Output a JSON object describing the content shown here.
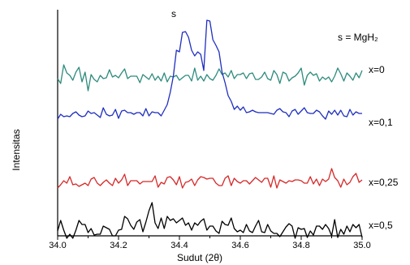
{
  "chart_data": {
    "type": "line",
    "xlabel": "Sudut (2θ)",
    "ylabel": "Intensitas",
    "xlim": [
      34.0,
      35.0
    ],
    "xticks": [
      "34.0",
      "34.2",
      "34.4",
      "34.6",
      "34.8",
      "35.0"
    ],
    "y_ticks_shown": false,
    "peak_label": "s",
    "legend_note": "s = MgH₂",
    "series": [
      {
        "name": "x=0",
        "color": "#2e8b7e",
        "values": [
          100,
          94,
          117,
          107,
          104,
          98,
          108,
          114,
          96,
          108,
          85,
          105,
          99,
          96,
          104,
          100,
          101,
          111,
          102,
          104,
          101,
          107,
          112,
          100,
          103,
          103,
          103,
          95,
          105,
          102,
          99,
          106,
          98,
          103,
          97,
          107,
          96,
          103,
          102,
          104,
          98,
          101,
          104,
          104,
          97,
          113,
          98,
          103,
          97,
          105,
          100,
          98,
          104,
          112,
          105,
          107,
          102,
          110,
          100,
          105,
          105,
          107,
          100,
          106,
          107,
          99,
          99,
          102,
          108,
          100,
          98,
          110,
          105,
          94,
          108,
          106,
          97,
          101,
          103,
          107,
          113,
          92,
          104,
          108,
          104,
          106,
          97,
          102,
          99,
          102,
          96,
          103,
          113,
          106,
          97,
          107,
          103,
          98,
          107,
          101,
          110
        ]
      },
      {
        "name": "x=0,1",
        "color": "#1f2fbf",
        "values": [
          50,
          56,
          53,
          54,
          53,
          57,
          59,
          55,
          53,
          54,
          60,
          57,
          58,
          55,
          52,
          64,
          56,
          54,
          55,
          62,
          51,
          60,
          61,
          58,
          58,
          56,
          58,
          58,
          54,
          63,
          54,
          59,
          58,
          58,
          54,
          61,
          68,
          83,
          103,
          135,
          133,
          157,
          158,
          151,
          135,
          128,
          133,
          130,
          110,
          172,
          171,
          148,
          141,
          133,
          108,
          95,
          79,
          72,
          62,
          66,
          61,
          65,
          58,
          59,
          61,
          59,
          58,
          58,
          58,
          58,
          57,
          56,
          61,
          63,
          59,
          58,
          53,
          60,
          62,
          56,
          60,
          64,
          58,
          57,
          57,
          61,
          59,
          54,
          50,
          60,
          56,
          61,
          55,
          61,
          54,
          53,
          62,
          55,
          59,
          57,
          57
        ]
      },
      {
        "name": "x=0,25",
        "color": "#d62828",
        "values": [
          -35,
          -31,
          -26,
          -29,
          -21,
          -31,
          -30,
          -33,
          -31,
          -29,
          -32,
          -24,
          -22,
          -29,
          -32,
          -28,
          -25,
          -29,
          -32,
          -23,
          -29,
          -25,
          -18,
          -32,
          -26,
          -26,
          -26,
          -30,
          -27,
          -27,
          -27,
          -27,
          -20,
          -34,
          -28,
          -30,
          -22,
          -21,
          -25,
          -31,
          -21,
          -35,
          -28,
          -27,
          -24,
          -32,
          -25,
          -21,
          -22,
          -24,
          -23,
          -23,
          -29,
          -32,
          -32,
          -23,
          -20,
          -32,
          -23,
          -27,
          -29,
          -26,
          -26,
          -30,
          -26,
          -22,
          -25,
          -28,
          -23,
          -23,
          -34,
          -20,
          -35,
          -25,
          -27,
          -29,
          -26,
          -27,
          -25,
          -25,
          -26,
          -29,
          -29,
          -21,
          -30,
          -24,
          -32,
          -24,
          -27,
          -24,
          -11,
          -22,
          -26,
          -34,
          -24,
          -31,
          -28,
          -21,
          -17,
          -28,
          -25
        ]
      },
      {
        "name": "x=0,5",
        "color": "#000000",
        "values": [
          -88,
          -75,
          -87,
          -97,
          -92,
          -97,
          -87,
          -75,
          -80,
          -80,
          -90,
          -85,
          -93,
          -92,
          -92,
          -82,
          -84,
          -86,
          -94,
          -94,
          -87,
          -86,
          -70,
          -73,
          -81,
          -86,
          -77,
          -74,
          -89,
          -77,
          -63,
          -53,
          -78,
          -85,
          -72,
          -85,
          -70,
          -75,
          -73,
          -78,
          -75,
          -72,
          -81,
          -78,
          -87,
          -78,
          -81,
          -76,
          -73,
          -87,
          -82,
          -82,
          -88,
          -91,
          -76,
          -80,
          -81,
          -72,
          -85,
          -89,
          -87,
          -90,
          -80,
          -88,
          -90,
          -82,
          -75,
          -89,
          -90,
          -80,
          -88,
          -91,
          -91,
          -95,
          -89,
          -83,
          -79,
          -82,
          -97,
          -84,
          -86,
          -85,
          -96,
          -88,
          -93,
          -82,
          -82,
          -86,
          -80,
          -85,
          -94,
          -74,
          -96,
          -86,
          -92,
          -82,
          -89,
          -80,
          -84,
          -80,
          -96
        ]
      }
    ]
  }
}
